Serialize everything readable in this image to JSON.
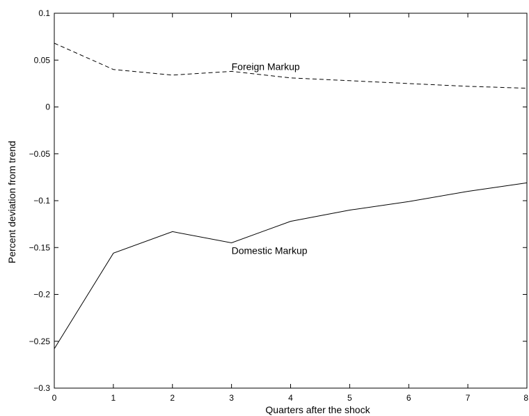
{
  "chart_data": {
    "type": "line",
    "title": "",
    "xlabel": "Quarters after the shock",
    "ylabel": "Percent deviation from trend",
    "xlim": [
      0,
      8
    ],
    "ylim": [
      -0.3,
      0.1
    ],
    "x_ticks": [
      0,
      1,
      2,
      3,
      4,
      5,
      6,
      7,
      8
    ],
    "x_tick_labels": [
      "0",
      "1",
      "2",
      "3",
      "4",
      "5",
      "6",
      "7",
      "8"
    ],
    "y_ticks": [
      -0.3,
      -0.25,
      -0.2,
      -0.15,
      -0.1,
      -0.05,
      0,
      0.05,
      0.1
    ],
    "y_tick_labels": [
      "−0.3",
      "−0.25",
      "−0.2",
      "−0.15",
      "−0.1",
      "−0.05",
      "0",
      "0.05",
      "0.1"
    ],
    "grid": false,
    "legend": "none",
    "x": [
      0,
      1,
      2,
      3,
      4,
      5,
      6,
      7,
      8
    ],
    "series": [
      {
        "name": "Foreign Markup",
        "style": "dashed",
        "color": "#000000",
        "values": [
          0.068,
          0.04,
          0.034,
          0.038,
          0.031,
          0.028,
          0.025,
          0.022,
          0.02
        ]
      },
      {
        "name": "Domestic Markup",
        "style": "solid",
        "color": "#000000",
        "values": [
          -0.258,
          -0.156,
          -0.133,
          -0.145,
          -0.122,
          -0.11,
          -0.101,
          -0.09,
          -0.081
        ]
      }
    ],
    "annotations": [
      {
        "text": "Foreign Markup",
        "x": 3.0,
        "y": 0.043,
        "series": 0
      },
      {
        "text": "Domestic Markup",
        "x": 3.0,
        "y": -0.153,
        "series": 1
      }
    ]
  }
}
